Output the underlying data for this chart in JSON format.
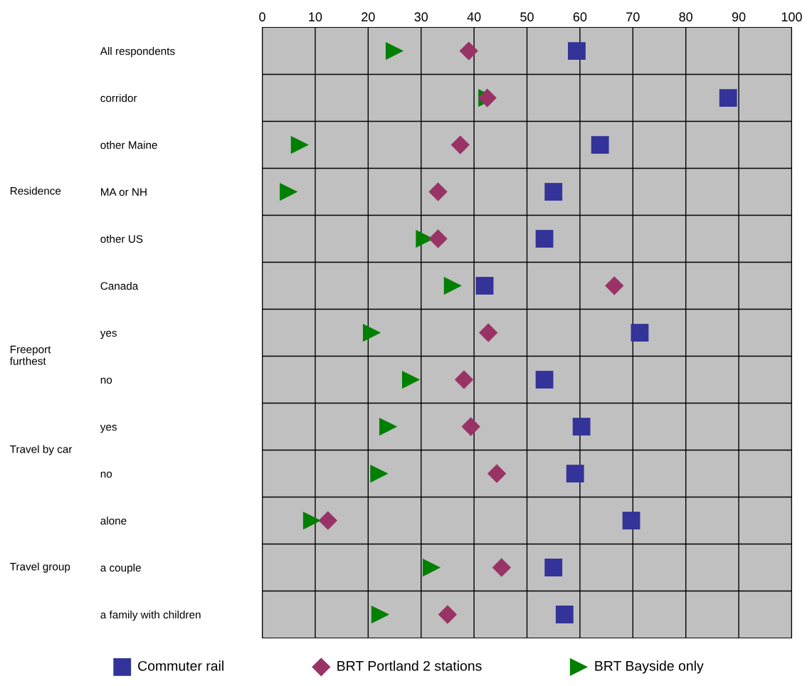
{
  "chart_data": {
    "type": "scatter",
    "categories": [
      "All respondents",
      "corridor",
      "other Maine",
      "MA or NH",
      "other US",
      "Canada",
      "yes",
      "no",
      "yes",
      "no",
      "alone",
      "a couple",
      "a family with children"
    ],
    "series": [
      {
        "name": "Commuter rail",
        "color": "#333399",
        "marker": "square",
        "values": [
          59.4,
          88,
          63.8,
          55,
          53.3,
          42,
          71.3,
          53.3,
          60.3,
          59.1,
          69.7,
          55,
          57.1
        ]
      },
      {
        "name": "BRT Portland 2 stations",
        "color": "#993366",
        "marker": "diamond",
        "values": [
          39,
          42.5,
          37.4,
          33.2,
          33.2,
          66.5,
          42.7,
          38.1,
          39.4,
          44.3,
          12.4,
          45.2,
          35
        ]
      },
      {
        "name": "BRT Bayside only",
        "color": "#008000",
        "marker": "triangle",
        "values": [
          25,
          42.5,
          7.1,
          5,
          30.7,
          36,
          20.7,
          28.1,
          23.8,
          22.1,
          9.4,
          32,
          22.3
        ]
      }
    ],
    "xlim": [
      0,
      100
    ],
    "xticks": [
      0,
      10,
      20,
      30,
      40,
      50,
      60,
      70,
      80,
      90,
      100
    ],
    "grid": true,
    "legend": "bottom",
    "orientation": "horizontal",
    "annotations": [
      "Residence",
      "Freeport\nfurthest",
      "Travel by car",
      "Travel group"
    ]
  }
}
